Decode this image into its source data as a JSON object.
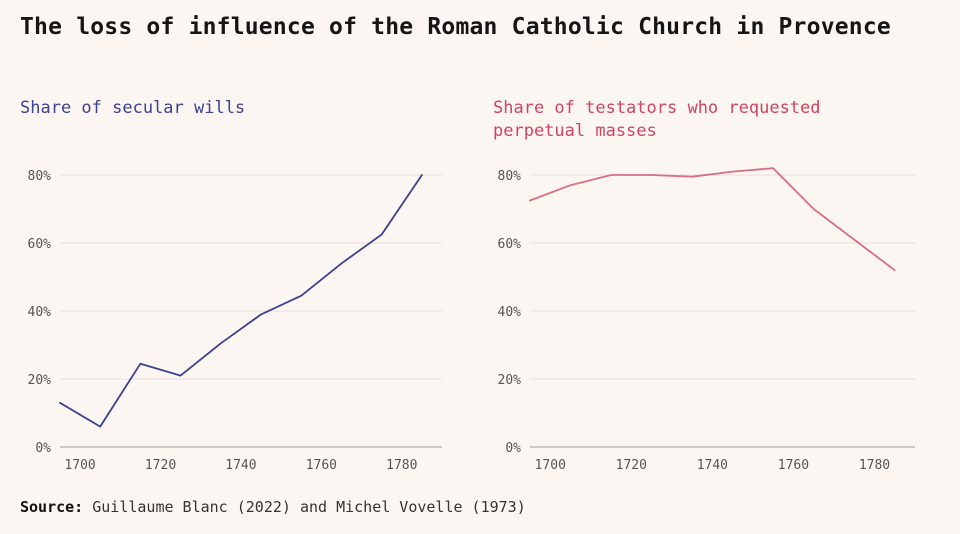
{
  "title": "The loss of influence of the Roman Catholic Church in Provence",
  "source_label": "Source:",
  "source_text": "Guillaume Blanc (2022) and Michel Vovelle (1973)",
  "colors": {
    "background": "#fcf6f3",
    "secular": "#3c4292",
    "masses": "#d1445f",
    "masses_line": "#d86f82",
    "grid": "#eadfdb",
    "axis": "#9a9a9a",
    "tick_text": "#555555"
  },
  "chart_data": [
    {
      "type": "line",
      "title": "Share of secular wills",
      "xlabel": "",
      "ylabel": "",
      "xlim": [
        1695,
        1790
      ],
      "ylim": [
        0,
        80
      ],
      "x_ticks": [
        1700,
        1720,
        1740,
        1760,
        1780
      ],
      "x_tick_labels": [
        "1700",
        "1720",
        "1740",
        "1760",
        "1780"
      ],
      "y_ticks": [
        0,
        20,
        40,
        60,
        80
      ],
      "y_tick_labels": [
        "0%",
        "20%",
        "40%",
        "60%",
        "80%"
      ],
      "grid": true,
      "series": [
        {
          "x": [
            1695,
            1705,
            1715,
            1725,
            1735,
            1745,
            1755,
            1765,
            1775,
            1785
          ],
          "y": [
            13,
            6,
            24.5,
            21,
            30.5,
            39,
            44.5,
            54,
            62.5,
            80
          ]
        }
      ]
    },
    {
      "type": "line",
      "title": "Share of testators who requested perpetual masses",
      "xlabel": "",
      "ylabel": "",
      "xlim": [
        1695,
        1790
      ],
      "ylim": [
        0,
        80
      ],
      "x_ticks": [
        1700,
        1720,
        1740,
        1760,
        1780
      ],
      "x_tick_labels": [
        "1700",
        "1720",
        "1740",
        "1760",
        "1780"
      ],
      "y_ticks": [
        0,
        20,
        40,
        60,
        80
      ],
      "y_tick_labels": [
        "0%",
        "20%",
        "40%",
        "60%",
        "80%"
      ],
      "grid": true,
      "series": [
        {
          "x": [
            1695,
            1705,
            1715,
            1725,
            1735,
            1745,
            1755,
            1765,
            1775,
            1785
          ],
          "y": [
            72.5,
            77,
            80,
            80,
            79.5,
            81,
            82,
            70,
            61,
            52
          ]
        }
      ]
    }
  ]
}
